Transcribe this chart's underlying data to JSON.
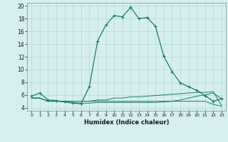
{
  "xlabel": "Humidex (Indice chaleur)",
  "background_color": "#d6efee",
  "grid_color": "#b0d8d5",
  "line_color": "#1a7a6e",
  "xlim": [
    -0.5,
    23.5
  ],
  "ylim": [
    3.5,
    20.5
  ],
  "xticks": [
    0,
    1,
    2,
    3,
    4,
    5,
    6,
    7,
    8,
    9,
    10,
    11,
    12,
    13,
    14,
    15,
    16,
    17,
    18,
    19,
    20,
    21,
    22,
    23
  ],
  "yticks": [
    4,
    6,
    8,
    10,
    12,
    14,
    16,
    18,
    20
  ],
  "series1": [
    5.8,
    6.3,
    5.2,
    5.1,
    4.9,
    4.7,
    4.6,
    7.3,
    14.5,
    17.0,
    18.5,
    18.3,
    19.8,
    18.0,
    18.2,
    16.8,
    12.1,
    9.7,
    7.9,
    7.3,
    6.7,
    5.9,
    5.0,
    5.4
  ],
  "series2": [
    5.5,
    5.5,
    5.0,
    5.0,
    5.0,
    5.0,
    5.0,
    5.0,
    5.2,
    5.2,
    5.5,
    5.5,
    5.7,
    5.7,
    5.8,
    5.9,
    6.0,
    6.1,
    6.2,
    6.3,
    6.4,
    6.4,
    6.5,
    4.3
  ],
  "series3": [
    5.5,
    5.5,
    5.0,
    5.0,
    5.0,
    5.0,
    5.0,
    5.0,
    5.0,
    5.0,
    5.0,
    5.0,
    5.0,
    5.0,
    5.0,
    5.0,
    5.0,
    5.0,
    5.0,
    5.0,
    5.0,
    5.0,
    4.5,
    4.2
  ],
  "series4": [
    5.5,
    5.5,
    5.0,
    5.0,
    4.9,
    4.8,
    4.7,
    4.7,
    4.8,
    4.8,
    4.8,
    4.8,
    4.8,
    4.8,
    4.8,
    4.8,
    4.9,
    5.0,
    5.2,
    5.5,
    5.8,
    6.0,
    6.3,
    5.4
  ]
}
